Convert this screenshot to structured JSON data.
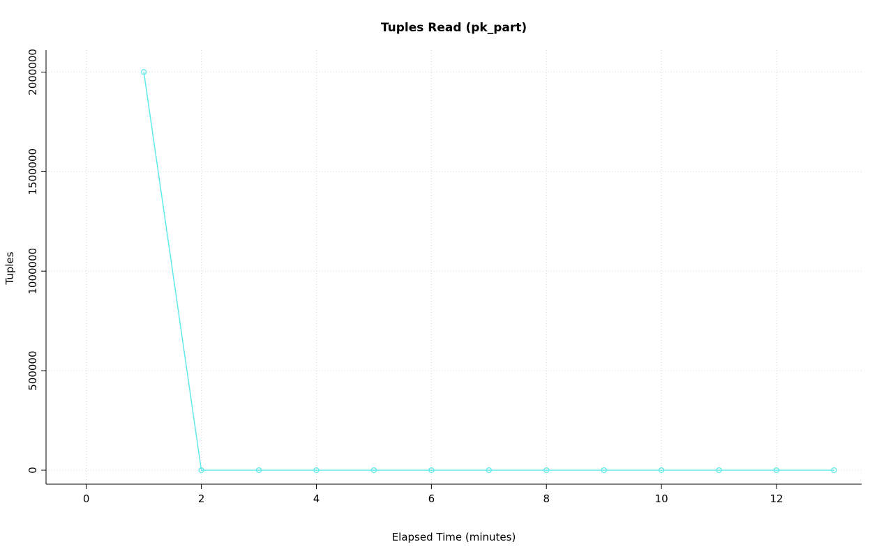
{
  "chart_data": {
    "type": "line",
    "title": "Tuples Read (pk_part)",
    "xlabel": "Elapsed Time (minutes)",
    "ylabel": "Tuples",
    "x": [
      1,
      2,
      3,
      4,
      5,
      6,
      7,
      8,
      9,
      10,
      11,
      12,
      13
    ],
    "values": [
      2000000,
      0,
      0,
      0,
      0,
      0,
      0,
      0,
      0,
      0,
      0,
      0,
      0
    ],
    "xticks": [
      0,
      2,
      4,
      6,
      8,
      10,
      12
    ],
    "yticks": [
      0,
      500000,
      1000000,
      1500000,
      2000000
    ],
    "xtick_labels": [
      "0",
      "2",
      "4",
      "6",
      "8",
      "10",
      "12"
    ],
    "ytick_labels": [
      "0",
      "500000",
      "1000000",
      "1500000",
      "2000000"
    ],
    "xlim": [
      -0.7,
      13.48
    ],
    "ylim": [
      -70000,
      2110000
    ],
    "grid": "dotted",
    "legend_position": "none",
    "series_color": "#5fe9e9",
    "grid_color": "#d6d6d6",
    "axis_color": "#000000",
    "marker": "open-circle"
  }
}
